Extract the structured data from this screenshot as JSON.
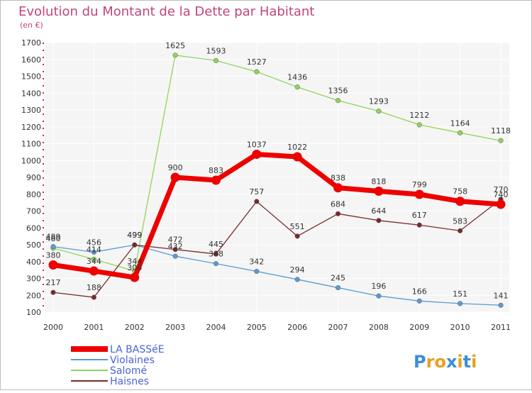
{
  "chart_data": {
    "type": "line",
    "title": "Evolution du Montant de la Dette par Habitant",
    "subtitle": "(en €)",
    "x": [
      "2000",
      "2001",
      "2002",
      "2003",
      "2004",
      "2005",
      "2006",
      "2007",
      "2008",
      "2009",
      "2010",
      "2011"
    ],
    "ylim": [
      100,
      1700
    ],
    "yticks": [
      100,
      200,
      300,
      400,
      500,
      600,
      700,
      800,
      900,
      1000,
      1100,
      1200,
      1300,
      1400,
      1500,
      1600,
      1700
    ],
    "grid": true,
    "legend_position": "bottom-left",
    "series": [
      {
        "name": "LA BASSéE",
        "color": "#ee0000",
        "values": [
          380,
          344,
          306,
          900,
          883,
          1037,
          1022,
          838,
          818,
          799,
          758,
          740
        ]
      },
      {
        "name": "Violaines",
        "color": "#5b9bd5",
        "values": [
          489,
          456,
          499,
          432,
          388,
          342,
          294,
          245,
          196,
          166,
          151,
          141
        ]
      },
      {
        "name": "Salomé",
        "color": "#8fd65a",
        "values": [
          480,
          414,
          344,
          1625,
          1593,
          1527,
          1436,
          1356,
          1293,
          1212,
          1164,
          1118
        ]
      },
      {
        "name": "Haisnes",
        "color": "#7b2a2a",
        "values": [
          217,
          188,
          499,
          472,
          445,
          757,
          551,
          684,
          644,
          617,
          583,
          770
        ]
      }
    ]
  },
  "brand": {
    "logo_text": "Proxiti"
  }
}
